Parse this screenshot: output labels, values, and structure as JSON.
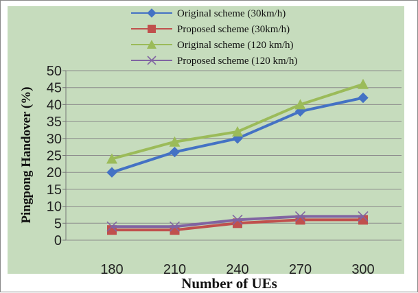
{
  "chart_data": {
    "type": "line",
    "title": "",
    "xlabel": "Number of UEs",
    "ylabel": "Pingpong Handover (%)",
    "categories": [
      "180",
      "210",
      "240",
      "270",
      "300"
    ],
    "ylim": [
      0,
      50
    ],
    "yticks": [
      "0",
      "5",
      "10",
      "15",
      "20",
      "25",
      "30",
      "35",
      "40",
      "45",
      "50"
    ],
    "grid": true,
    "legend_position": "top",
    "plot_background": "#c6dcbd",
    "series": [
      {
        "name": "Original scheme (30km/h)",
        "values": [
          20,
          26,
          30,
          38,
          42
        ],
        "color": "#4472c4",
        "marker": "diamond"
      },
      {
        "name": "Proposed scheme (30km/h)",
        "values": [
          3,
          3,
          5,
          6,
          6
        ],
        "color": "#c0504d",
        "marker": "square"
      },
      {
        "name": "Original scheme (120 km/h)",
        "values": [
          24,
          29,
          32,
          40,
          46
        ],
        "color": "#9bbb59",
        "marker": "triangle"
      },
      {
        "name": "Proposed scheme (120 km/h)",
        "values": [
          4,
          4,
          6,
          7,
          7
        ],
        "color": "#8064a2",
        "marker": "x"
      }
    ]
  }
}
